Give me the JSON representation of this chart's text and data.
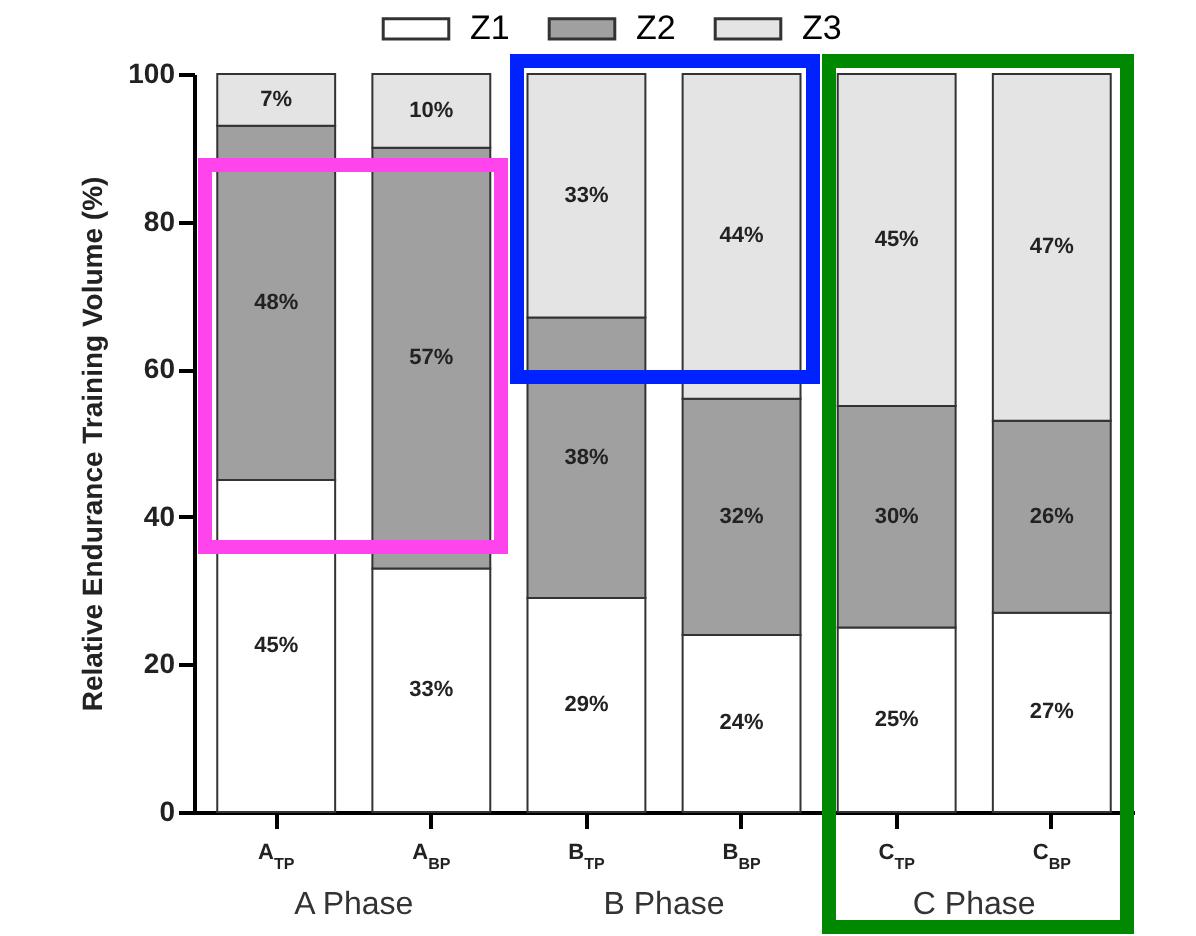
{
  "chart_data": {
    "type": "bar",
    "stacked": true,
    "ylabel": "Relative Endurance Training Volume (%)",
    "categories": [
      "A$_{TP}$",
      "A$_{BP}$",
      "B$_{TP}$",
      "B$_{BP}$",
      "C$_{TP}$",
      "C$_{BP}$"
    ],
    "annotations": [
      "A Phase",
      "B Phase",
      "C Phase"
    ],
    "ylim": [
      0,
      100
    ],
    "yticks": [
      0,
      20,
      40,
      60,
      80,
      100
    ],
    "legend": "top",
    "series": [
      {
        "name": "Z1",
        "color": "#ffffff",
        "values": [
          45,
          33,
          29,
          24,
          25,
          27
        ],
        "value_labels": [
          "45%",
          "33%",
          "29%",
          "24%",
          "25%",
          "27%"
        ]
      },
      {
        "name": "Z2",
        "color": "#a0a0a0",
        "values": [
          48,
          57,
          38,
          32,
          30,
          26
        ],
        "value_labels": [
          "48%",
          "57%",
          "38%",
          "32%",
          "30%",
          "26%"
        ]
      },
      {
        "name": "Z3",
        "color": "#e4e4e4",
        "values": [
          7,
          10,
          33,
          44,
          45,
          47
        ],
        "value_labels": [
          "7%",
          "10%",
          "33%",
          "44%",
          "45%",
          "47%"
        ]
      }
    ]
  }
}
